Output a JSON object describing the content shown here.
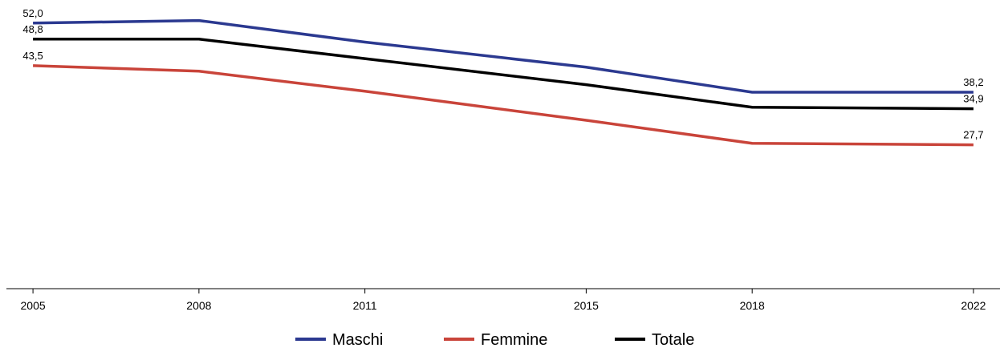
{
  "chart_data": {
    "type": "line",
    "x": [
      2005,
      2008,
      2011,
      2015,
      2018,
      2022
    ],
    "xlim": [
      2004.52,
      2022.48
    ],
    "xticks": [
      2005,
      2008,
      2011,
      2015,
      2018,
      2022
    ],
    "ylim": [
      -1,
      55
    ],
    "series": [
      {
        "name": "Maschi",
        "color": "#2b3990",
        "values": [
          52.0,
          52.5,
          48.2,
          43.2,
          38.2,
          38.2
        ],
        "value_labels": [
          "52,0",
          null,
          null,
          null,
          null,
          "38,2"
        ]
      },
      {
        "name": "Femmine",
        "color": "#c9443a",
        "values": [
          43.5,
          42.4,
          38.4,
          32.6,
          28.0,
          27.7
        ],
        "value_labels": [
          "43,5",
          null,
          null,
          null,
          null,
          "27,7"
        ]
      },
      {
        "name": "Totale",
        "color": "#000000",
        "values": [
          48.8,
          48.8,
          44.9,
          39.7,
          35.2,
          34.9
        ],
        "value_labels": [
          "48,8",
          null,
          null,
          null,
          null,
          "34,9"
        ]
      }
    ],
    "legend": "bottom"
  }
}
